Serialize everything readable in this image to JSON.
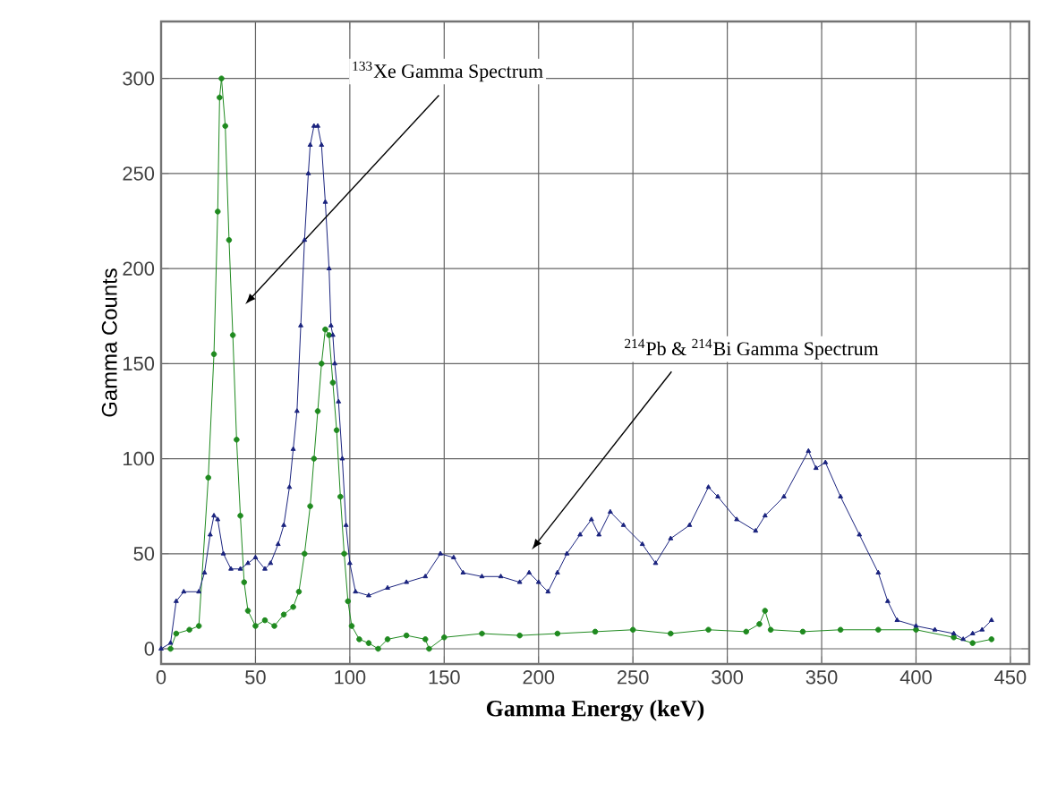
{
  "chart_data": {
    "type": "line",
    "xlabel": "Gamma Energy (keV)",
    "ylabel": "Gamma Counts",
    "xlim": [
      0,
      460
    ],
    "ylim": [
      -8,
      330
    ],
    "xticks": [
      0,
      50,
      100,
      150,
      200,
      250,
      300,
      350,
      400,
      450
    ],
    "yticks": [
      0,
      50,
      100,
      150,
      200,
      250,
      300
    ],
    "grid": true,
    "annotations": [
      "$^{133}$Xe Gamma Spectrum",
      "$^{214}$Pb & $^{214}$Bi Gamma Spectrum"
    ],
    "series": [
      {
        "color": "#1f8a1f",
        "marker": "circle",
        "x": [
          5,
          8,
          15,
          20,
          25,
          28,
          30,
          31,
          32,
          34,
          36,
          38,
          40,
          42,
          44,
          46,
          50,
          55,
          60,
          65,
          70,
          73,
          76,
          79,
          81,
          83,
          85,
          87,
          89,
          91,
          93,
          95,
          97,
          99,
          101,
          105,
          110,
          115,
          120,
          130,
          140,
          142,
          150,
          170,
          190,
          210,
          230,
          250,
          270,
          290,
          310,
          317,
          320,
          323,
          340,
          360,
          380,
          400,
          420,
          430,
          440
        ],
        "values": [
          0,
          8,
          10,
          12,
          90,
          155,
          230,
          290,
          300,
          275,
          215,
          165,
          110,
          70,
          35,
          20,
          12,
          15,
          12,
          18,
          22,
          30,
          50,
          75,
          100,
          125,
          150,
          168,
          165,
          140,
          115,
          80,
          50,
          25,
          12,
          5,
          3,
          0,
          5,
          7,
          5,
          0,
          6,
          8,
          7,
          8,
          9,
          10,
          8,
          10,
          9,
          13,
          20,
          10,
          9,
          10,
          10,
          10,
          6,
          3,
          5
        ]
      },
      {
        "color": "#1a237e",
        "marker": "triangle",
        "x": [
          0,
          5,
          8,
          12,
          20,
          23,
          26,
          28,
          30,
          33,
          37,
          42,
          46,
          50,
          55,
          58,
          62,
          65,
          68,
          70,
          72,
          74,
          76,
          78,
          79,
          81,
          83,
          85,
          87,
          89,
          90,
          91,
          92,
          94,
          96,
          98,
          100,
          103,
          110,
          120,
          130,
          140,
          148,
          155,
          160,
          170,
          180,
          190,
          195,
          200,
          205,
          210,
          215,
          222,
          228,
          232,
          238,
          245,
          255,
          262,
          270,
          280,
          290,
          295,
          305,
          315,
          320,
          330,
          343,
          347,
          352,
          360,
          370,
          380,
          385,
          390,
          400,
          410,
          420,
          425,
          430,
          435,
          440
        ],
        "values": [
          0,
          3,
          25,
          30,
          30,
          40,
          60,
          70,
          68,
          50,
          42,
          42,
          45,
          48,
          42,
          45,
          55,
          65,
          85,
          105,
          125,
          170,
          215,
          250,
          265,
          275,
          275,
          265,
          235,
          200,
          170,
          165,
          150,
          130,
          100,
          65,
          45,
          30,
          28,
          32,
          35,
          38,
          50,
          48,
          40,
          38,
          38,
          35,
          40,
          35,
          30,
          40,
          50,
          60,
          68,
          60,
          72,
          65,
          55,
          45,
          58,
          65,
          85,
          80,
          68,
          62,
          70,
          80,
          104,
          95,
          98,
          80,
          60,
          40,
          25,
          15,
          12,
          10,
          8,
          5,
          8,
          10,
          15
        ]
      }
    ]
  }
}
